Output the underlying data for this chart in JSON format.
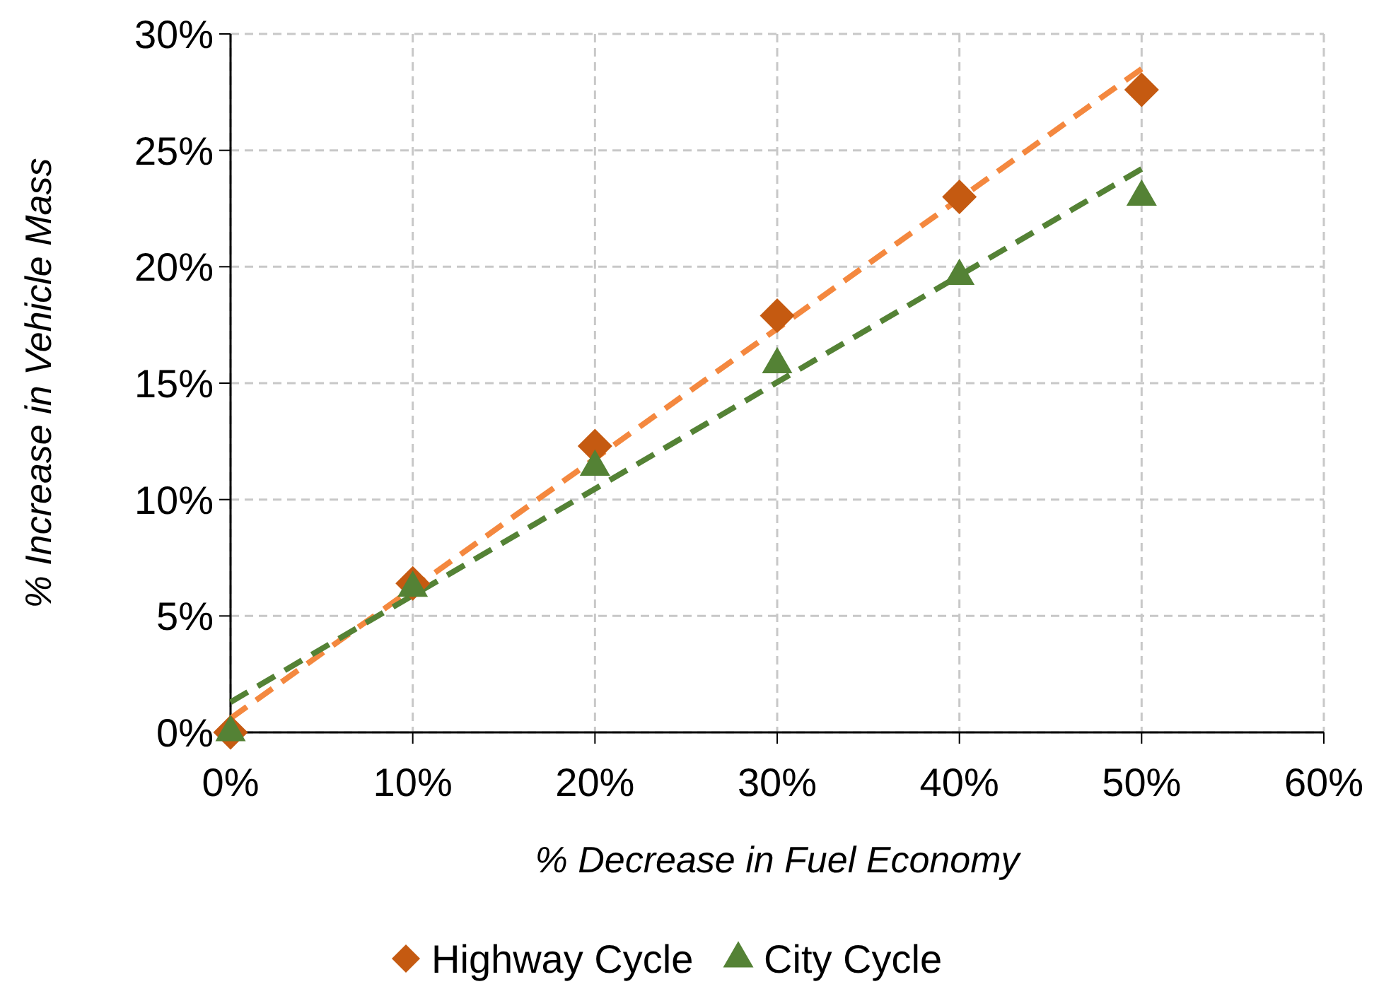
{
  "chart_data": {
    "type": "scatter",
    "xlabel": "% Decrease in Fuel Economy",
    "ylabel": "% Increase in Vehicle Mass",
    "xlim": [
      0,
      60
    ],
    "xticks": [
      {
        "value": 0,
        "label": "0%"
      },
      {
        "value": 10,
        "label": "10%"
      },
      {
        "value": 20,
        "label": "20%"
      },
      {
        "value": 30,
        "label": "30%"
      },
      {
        "value": 40,
        "label": "40%"
      },
      {
        "value": 50,
        "label": "50%"
      },
      {
        "value": 60,
        "label": "60%"
      }
    ],
    "ylim": [
      0,
      30
    ],
    "yticks": [
      {
        "value": 0,
        "label": "0%"
      },
      {
        "value": 5,
        "label": "5%"
      },
      {
        "value": 10,
        "label": "10%"
      },
      {
        "value": 15,
        "label": "15%"
      },
      {
        "value": 20,
        "label": "20%"
      },
      {
        "value": 25,
        "label": "25%"
      },
      {
        "value": 30,
        "label": "30%"
      }
    ],
    "grid": true,
    "legend": "bottom",
    "series": [
      {
        "type": "line",
        "color": "#f4883f",
        "x": [
          0,
          50
        ],
        "values": [
          0.6,
          28.5
        ],
        "marker": "none",
        "line_style": "dashed"
      },
      {
        "type": "line",
        "color": "#548235",
        "x": [
          0,
          50
        ],
        "values": [
          1.3,
          24.2
        ],
        "marker": "none",
        "line_style": "dashed"
      },
      {
        "name": "Highway Cycle",
        "color": "#c55a11",
        "x": [
          0,
          10,
          20,
          30,
          40,
          50
        ],
        "values": [
          0,
          6.4,
          12.3,
          17.9,
          23.0,
          27.6
        ],
        "marker": "diamond"
      },
      {
        "name": "City Cycle",
        "color": "#548235",
        "x": [
          0,
          10,
          20,
          30,
          40,
          50
        ],
        "values": [
          0,
          6.2,
          11.4,
          15.8,
          19.6,
          23.0
        ],
        "marker": "triangle"
      }
    ]
  }
}
